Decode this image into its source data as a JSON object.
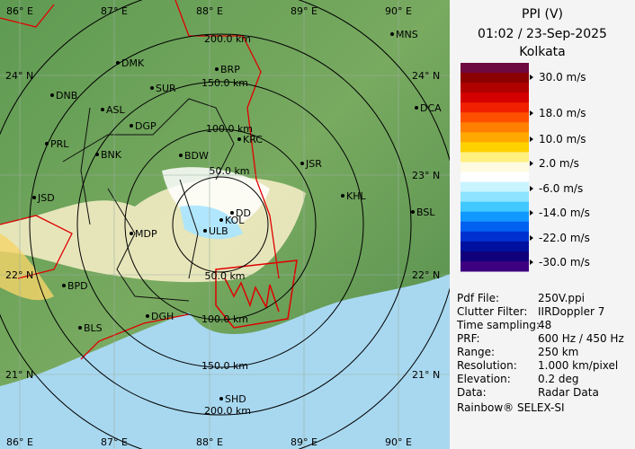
{
  "map": {
    "lon_labels_top": [
      "86° E",
      "87° E",
      "88° E",
      "89° E",
      "90° E"
    ],
    "lon_labels_bottom": [
      "86° E",
      "87° E",
      "88° E",
      "89° E",
      "90° E"
    ],
    "lat_labels_left": [
      "24° N",
      "22° N",
      "21° N"
    ],
    "lat_labels_right": [
      "24° N",
      "23° N",
      "22° N",
      "21° N"
    ],
    "range_labels": [
      "50.0 km",
      "50.0 km",
      "100.0 km",
      "100.0 km",
      "150.0 km",
      "150.0 km",
      "200.0 km",
      "200.0 km"
    ],
    "cities": [
      "MNS",
      "DMK",
      "BRP",
      "SUR",
      "DNB",
      "ASL",
      "DGP",
      "DCA",
      "KRC",
      "PRL",
      "BNK",
      "BDW",
      "JSR",
      "KHL",
      "JSD",
      "BSL",
      "DD",
      "KOL",
      "ULB",
      "MDP",
      "BPD",
      "DGH",
      "BLS",
      "SHD"
    ]
  },
  "header": {
    "title_lines": [
      "PPI (V)",
      "01:02 / 23-Sep-2025",
      "Kolkata"
    ]
  },
  "legend": {
    "colors": [
      "#6e0a40",
      "#8c0000",
      "#b00000",
      "#d40000",
      "#f02000",
      "#ff5000",
      "#ff8000",
      "#ffa800",
      "#ffd000",
      "#fff080",
      "#fffbe0",
      "#ffffff",
      "#c8f4ff",
      "#8ce4ff",
      "#40c8ff",
      "#1098ff",
      "#0060f0",
      "#0030d0",
      "#0010a0",
      "#10007a",
      "#3c0080"
    ],
    "labels": [
      "30.0 m/s",
      "18.0 m/s",
      "10.0 m/s",
      "2.0 m/s",
      "-6.0 m/s",
      "-14.0 m/s",
      "-22.0 m/s",
      "-30.0 m/s"
    ]
  },
  "info": {
    "rows": [
      [
        "Pdf File:",
        "250V.ppi"
      ],
      [
        "Clutter Filter:",
        "IIRDoppler 7"
      ],
      [
        "Time sampling:",
        "48"
      ],
      [
        "PRF:",
        "600 Hz / 450 Hz"
      ],
      [
        "Range:",
        "250 km"
      ],
      [
        "Resolution:",
        "1.000 km/pixel"
      ],
      [
        "Elevation:",
        "0.2 deg"
      ],
      [
        "Data:",
        "Radar Data"
      ]
    ],
    "footer": "Rainbow® SELEX-SI"
  }
}
